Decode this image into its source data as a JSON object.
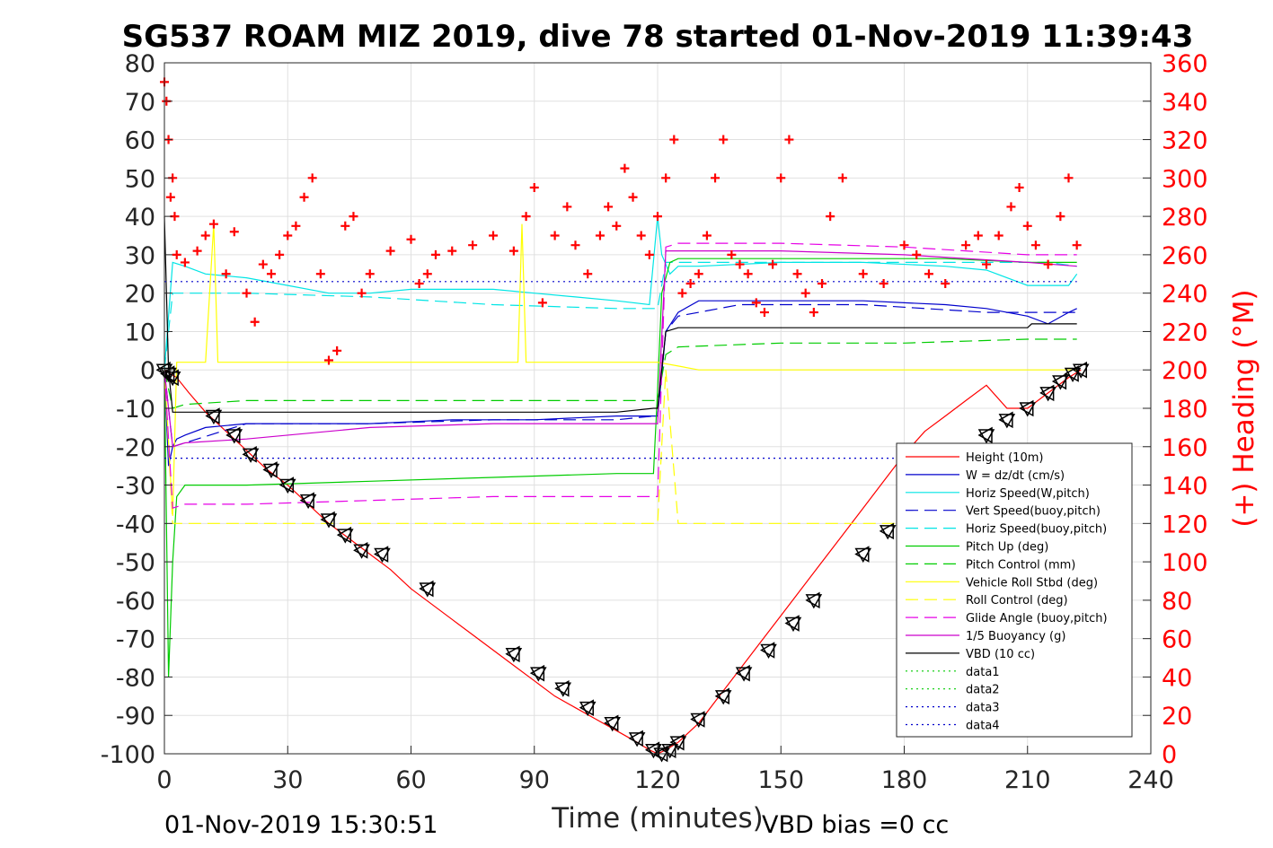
{
  "chart_data": {
    "type": "line",
    "title": "SG537 ROAM MIZ 2019, dive 78 started 01-Nov-2019 11:39:43",
    "xlabel": "Time (minutes)",
    "ylabel_right": "(+) Heading (°M)",
    "footer_left": "01-Nov-2019 15:30:51",
    "footer_right": "VBD bias =0 cc",
    "xlim": [
      0,
      240
    ],
    "ylim": [
      -100,
      80
    ],
    "ylim_right": [
      0,
      360
    ],
    "x_ticks": [
      "0",
      "30",
      "60",
      "90",
      "120",
      "150",
      "180",
      "210",
      "240"
    ],
    "y_ticks": [
      "80",
      "70",
      "60",
      "50",
      "40",
      "30",
      "20",
      "10",
      "0",
      "-10",
      "-20",
      "-30",
      "-40",
      "-50",
      "-60",
      "-70",
      "-80",
      "-90",
      "-100"
    ],
    "y_right_ticks": [
      "360",
      "340",
      "320",
      "300",
      "280",
      "260",
      "240",
      "220",
      "200",
      "180",
      "160",
      "140",
      "120",
      "100",
      "80",
      "60",
      "40",
      "20",
      "0"
    ],
    "grid": true,
    "legend_position": "lower-right",
    "colors": {
      "height": "#ff0000",
      "w": "#0000cc",
      "horiz": "#00e5e5",
      "pitch": "#00cc00",
      "roll": "#ffff00",
      "glide": "#e600e6",
      "buoy": "#cc00cc",
      "vbd": "#000000",
      "heading": "#ff0000",
      "data": "#00cc00",
      "data4": "#0000cc"
    },
    "series": [
      {
        "name": "Height (10m)",
        "color": "#ff0000",
        "style": "solid",
        "x": [
          0,
          3,
          6,
          10,
          15,
          20,
          25,
          30,
          35,
          40,
          45,
          50,
          55,
          60,
          65,
          70,
          75,
          80,
          85,
          90,
          95,
          100,
          105,
          110,
          115,
          118,
          120,
          122,
          125,
          130,
          135,
          140,
          145,
          150,
          155,
          160,
          165,
          170,
          175,
          180,
          185,
          190,
          195,
          200,
          205,
          210,
          215,
          220,
          223
        ],
        "y": [
          0,
          -2,
          -6,
          -11,
          -16,
          -21,
          -26,
          -30,
          -35,
          -40,
          -44,
          -48,
          -52,
          -57,
          -61,
          -65,
          -69,
          -73,
          -77,
          -81,
          -85,
          -88,
          -91,
          -94,
          -97,
          -99,
          -100,
          -99,
          -97,
          -92,
          -85,
          -78,
          -71,
          -64,
          -57,
          -50,
          -43,
          -36,
          -29,
          -22,
          -16,
          -12,
          -8,
          -4,
          -10,
          -10,
          -6,
          -2,
          0
        ]
      },
      {
        "name": "W = dz/dt (cm/s)",
        "color": "#0000cc",
        "style": "solid",
        "x": [
          0,
          1,
          2,
          3,
          5,
          10,
          20,
          30,
          50,
          70,
          90,
          110,
          119,
          120,
          122,
          125,
          130,
          150,
          170,
          190,
          200,
          210,
          215,
          220,
          222
        ],
        "y": [
          0,
          -25,
          -20,
          -18,
          -17,
          -15,
          -14,
          -14,
          -14,
          -13,
          -13,
          -12,
          -12,
          -12,
          10,
          15,
          18,
          18,
          18,
          17,
          16,
          14,
          12,
          15,
          16
        ]
      },
      {
        "name": "Horiz Speed(W,pitch)",
        "color": "#00e5e5",
        "style": "solid",
        "x": [
          0,
          2,
          5,
          10,
          20,
          30,
          40,
          50,
          60,
          70,
          80,
          90,
          100,
          110,
          118,
          120,
          121,
          123,
          125,
          130,
          150,
          170,
          190,
          200,
          210,
          215,
          220,
          222
        ],
        "y": [
          0,
          28,
          27,
          25,
          24,
          22,
          20,
          20,
          21,
          21,
          21,
          20,
          19,
          18,
          17,
          40,
          30,
          25,
          27,
          27,
          28,
          28,
          27,
          26,
          22,
          22,
          22,
          25
        ]
      },
      {
        "name": "Vert Speed(buoy,pitch)",
        "color": "#0000cc",
        "style": "dashed",
        "x": [
          0,
          2,
          5,
          20,
          50,
          80,
          110,
          119,
          120,
          122,
          125,
          140,
          170,
          200,
          215,
          222
        ],
        "y": [
          0,
          -20,
          -19,
          -14,
          -14,
          -13,
          -13,
          -12,
          -12,
          10,
          14,
          17,
          17,
          15,
          15,
          15
        ]
      },
      {
        "name": "Horiz Speed(buoy,pitch)",
        "color": "#00e5e5",
        "style": "dashed",
        "x": [
          0,
          2,
          5,
          20,
          50,
          80,
          110,
          119,
          120,
          122,
          125,
          140,
          170,
          200,
          215,
          222
        ],
        "y": [
          0,
          20,
          20,
          20,
          19,
          17,
          16,
          16,
          16,
          28,
          28,
          28,
          28,
          28,
          28,
          27
        ]
      },
      {
        "name": "Pitch Up (deg)",
        "color": "#00cc00",
        "style": "solid",
        "x": [
          0,
          1,
          2,
          3,
          5,
          20,
          50,
          80,
          110,
          119,
          120,
          121,
          123,
          125,
          130,
          150,
          170,
          190,
          210,
          222
        ],
        "y": [
          0,
          -80,
          -50,
          -33,
          -30,
          -30,
          -29,
          -28,
          -27,
          -27,
          -5,
          20,
          28,
          29,
          29,
          29,
          29,
          29,
          28,
          28
        ]
      },
      {
        "name": "Pitch Control (mm)",
        "color": "#00cc00",
        "style": "dashed",
        "x": [
          0,
          2,
          5,
          20,
          50,
          80,
          110,
          119,
          120,
          122,
          125,
          150,
          180,
          210,
          222
        ],
        "y": [
          0,
          -10,
          -9,
          -8,
          -8,
          -8,
          -8,
          -8,
          -8,
          4,
          6,
          7,
          7,
          8,
          8
        ]
      },
      {
        "name": "Vehicle Roll Stbd (deg)",
        "color": "#ffff00",
        "style": "solid",
        "x": [
          0,
          2,
          3,
          10,
          12,
          13,
          30,
          50,
          70,
          86,
          87,
          88,
          100,
          110,
          120,
          125,
          130,
          150,
          170,
          190,
          210,
          222
        ],
        "y": [
          0,
          -38,
          2,
          2,
          38,
          2,
          2,
          2,
          2,
          2,
          38,
          2,
          2,
          2,
          2,
          1,
          0,
          0,
          0,
          0,
          0,
          0
        ]
      },
      {
        "name": "Roll Control (deg)",
        "color": "#ffff00",
        "style": "dashed",
        "x": [
          0,
          2,
          5,
          30,
          60,
          90,
          110,
          120,
          122,
          125,
          150,
          180,
          210,
          222
        ],
        "y": [
          0,
          -40,
          -40,
          -40,
          -40,
          -40,
          -40,
          -40,
          0,
          -40,
          -40,
          -40,
          -40,
          -40
        ]
      },
      {
        "name": "Glide Angle (buoy,pitch)",
        "color": "#e600e6",
        "style": "dashed",
        "x": [
          0,
          2,
          5,
          20,
          50,
          80,
          110,
          119,
          120,
          122,
          125,
          150,
          180,
          210,
          222
        ],
        "y": [
          0,
          -36,
          -35,
          -35,
          -34,
          -33,
          -33,
          -33,
          -33,
          32,
          33,
          33,
          32,
          30,
          30
        ]
      },
      {
        "name": "1/5 Buoyancy (g)",
        "color": "#cc00cc",
        "style": "solid",
        "x": [
          0,
          2,
          5,
          20,
          50,
          80,
          110,
          119,
          120,
          122,
          125,
          150,
          180,
          210,
          222
        ],
        "y": [
          0,
          -20,
          -19,
          -18,
          -15,
          -14,
          -14,
          -14,
          -14,
          31,
          31,
          31,
          30,
          28,
          27
        ]
      },
      {
        "name": "VBD (10 cc)",
        "color": "#000000",
        "style": "solid",
        "x": [
          0,
          1,
          2,
          5,
          20,
          50,
          80,
          110,
          119,
          120,
          122,
          125,
          150,
          180,
          210,
          211,
          222
        ],
        "y": [
          40,
          0,
          -11,
          -11,
          -11,
          -11,
          -11,
          -11,
          -10,
          -10,
          10,
          11,
          11,
          11,
          11,
          12,
          12
        ]
      },
      {
        "name": "data1",
        "color": "#00cc00",
        "style": "dotted",
        "x": [],
        "y": []
      },
      {
        "name": "data2",
        "color": "#00cc00",
        "style": "dotted",
        "x": [],
        "y": []
      },
      {
        "name": "data3",
        "color": "#0000cc",
        "style": "dotted",
        "x": [
          0,
          222
        ],
        "y": [
          -23,
          -23
        ]
      },
      {
        "name": "data4",
        "color": "#0000cc",
        "style": "dotted",
        "x": [
          0,
          222
        ],
        "y": [
          23,
          23
        ]
      }
    ],
    "heading": {
      "color": "#ff0000",
      "marker": "+",
      "axis": "right",
      "x": [
        0,
        0.5,
        1,
        1.5,
        2,
        2.5,
        3,
        5,
        8,
        10,
        12,
        15,
        17,
        20,
        22,
        24,
        26,
        28,
        30,
        32,
        34,
        36,
        38,
        40,
        42,
        44,
        46,
        48,
        50,
        55,
        60,
        62,
        64,
        66,
        70,
        75,
        80,
        85,
        88,
        90,
        92,
        95,
        98,
        100,
        103,
        106,
        108,
        110,
        112,
        114,
        116,
        118,
        120,
        122,
        124,
        126,
        128,
        130,
        132,
        134,
        136,
        138,
        140,
        142,
        144,
        146,
        148,
        150,
        152,
        154,
        156,
        158,
        160,
        162,
        165,
        170,
        175,
        180,
        183,
        186,
        190,
        195,
        198,
        200,
        203,
        206,
        208,
        210,
        212,
        215,
        218,
        220,
        222
      ],
      "y": [
        350,
        340,
        320,
        290,
        300,
        280,
        260,
        256,
        262,
        270,
        276,
        250,
        272,
        240,
        225,
        255,
        250,
        260,
        270,
        275,
        290,
        300,
        250,
        205,
        210,
        275,
        280,
        240,
        250,
        262,
        268,
        245,
        250,
        260,
        262,
        265,
        270,
        262,
        280,
        295,
        235,
        270,
        285,
        265,
        250,
        270,
        285,
        275,
        305,
        290,
        270,
        260,
        280,
        300,
        320,
        240,
        245,
        250,
        270,
        300,
        320,
        260,
        255,
        250,
        235,
        230,
        255,
        300,
        320,
        250,
        240,
        230,
        245,
        280,
        300,
        250,
        245,
        265,
        260,
        250,
        245,
        265,
        270,
        255,
        270,
        285,
        295,
        275,
        265,
        255,
        280,
        300,
        265
      ]
    },
    "markers": {
      "symbol": "triangle",
      "x": [
        0,
        1,
        2,
        12,
        17,
        21,
        26,
        30,
        35,
        40,
        44,
        48,
        53,
        64,
        85,
        91,
        97,
        103,
        109,
        115,
        119,
        121,
        123,
        125,
        130,
        136,
        141,
        147,
        153,
        158,
        170,
        176,
        200,
        205,
        210,
        215,
        218,
        221,
        223
      ],
      "y": [
        0,
        -1,
        -2,
        -12,
        -17,
        -22,
        -26,
        -30,
        -34,
        -39,
        -43,
        -47,
        -48,
        -57,
        -74,
        -79,
        -83,
        -88,
        -92,
        -96,
        -99,
        -100,
        -99,
        -97,
        -91,
        -85,
        -79,
        -73,
        -66,
        -60,
        -48,
        -42,
        -17,
        -13,
        -10,
        -6,
        -3,
        -1,
        0
      ]
    }
  }
}
